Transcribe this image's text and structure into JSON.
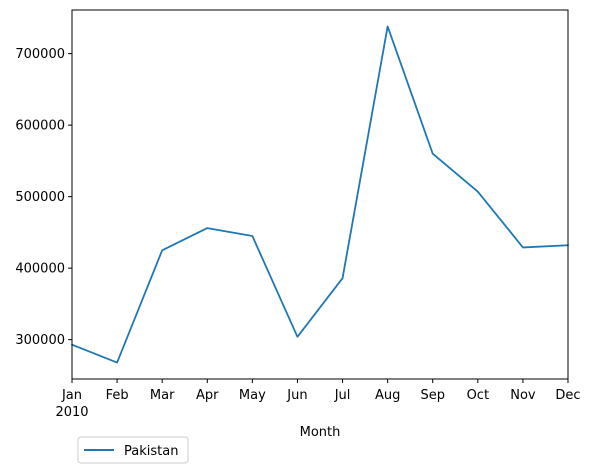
{
  "chart_data": {
    "type": "line",
    "title": "",
    "xlabel": "Month",
    "ylabel": "",
    "categories": [
      "Jan",
      "Feb",
      "Mar",
      "Apr",
      "May",
      "Jun",
      "Jul",
      "Aug",
      "Sep",
      "Oct",
      "Nov",
      "Dec"
    ],
    "year_label": "2010",
    "yticks": [
      300000,
      400000,
      500000,
      600000,
      700000
    ],
    "ylim": [
      245000,
      761000
    ],
    "grid": false,
    "legend_position": "lower-left outside",
    "series": [
      {
        "name": "Pakistan",
        "color": "#1f77b4",
        "values": [
          293000,
          268000,
          425000,
          456000,
          445000,
          304000,
          386000,
          738000,
          560000,
          507000,
          429000,
          432000
        ]
      }
    ]
  }
}
